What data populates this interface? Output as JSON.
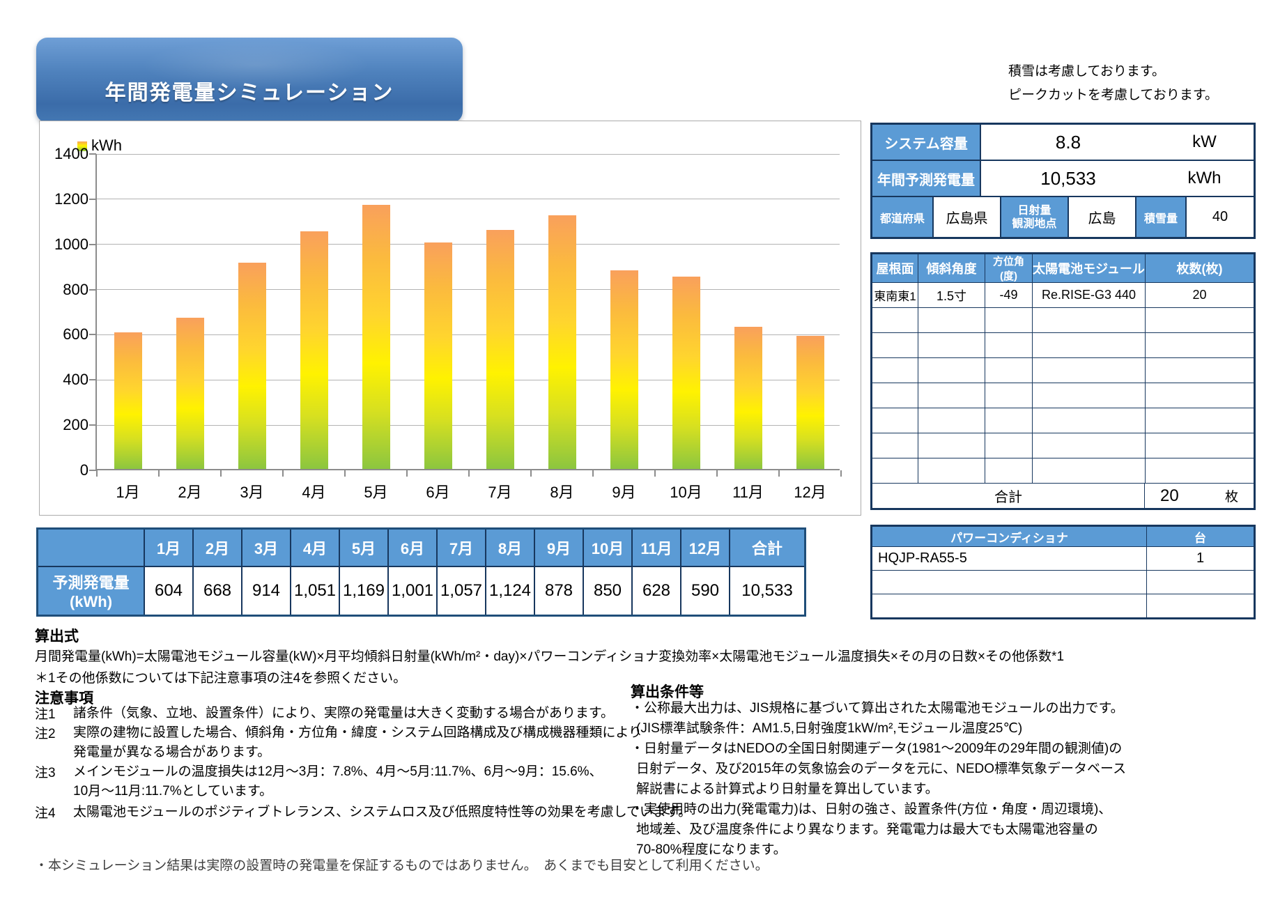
{
  "colors": {
    "header_blue": "#5b9bd5",
    "border_navy": "#17375e",
    "bar_top": "#f9a05c",
    "bar_mid": "#fff200",
    "bar_bottom": "#8cc63f",
    "banner_blue": "#4f82bd"
  },
  "title_banner": {
    "text": "年間発電量シミュレーション"
  },
  "top_notes": {
    "line1": "積雪は考慮しております。",
    "line2": "ピークカットを考慮しております。"
  },
  "chart_data": {
    "type": "bar",
    "legend": "kWh",
    "categories": [
      "1月",
      "2月",
      "3月",
      "4月",
      "5月",
      "6月",
      "7月",
      "8月",
      "9月",
      "10月",
      "11月",
      "12月"
    ],
    "values": [
      604,
      668,
      914,
      1051,
      1169,
      1001,
      1057,
      1124,
      878,
      850,
      628,
      590
    ],
    "ylim": [
      0,
      1400
    ],
    "yticks": [
      0,
      200,
      400,
      600,
      800,
      1000,
      1200,
      1400
    ],
    "grid": "horizontal",
    "legend_position": "top-left"
  },
  "system_table": {
    "capacity_label": "システム容量",
    "capacity_value": "8.8",
    "capacity_unit": "kW",
    "annual_label": "年間予測発電量",
    "annual_value": "10,533",
    "annual_unit": "kWh",
    "pref_label": "都道府県",
    "pref_value": "広島県",
    "irradiance_label_1": "日射量",
    "irradiance_label_2": "観測地点",
    "irradiance_value": "広島",
    "snow_label": "積雪量",
    "snow_value": "40"
  },
  "roof_table": {
    "headers": [
      "屋根面",
      "傾斜角度",
      "方位角(度)",
      "太陽電池モジュール",
      "枚数(枚)"
    ],
    "row": [
      "東南東1",
      "1.5寸",
      "-49",
      "Re.RISE-G3 440",
      "20"
    ],
    "empty_row_count": 7,
    "total_label": "合計",
    "total_value": "20",
    "total_unit": "枚"
  },
  "pcs_table": {
    "name_header": "パワーコンディショナ",
    "count_header": "台",
    "rows": [
      [
        "HQJP-RA55-5",
        "1"
      ],
      [
        "",
        ""
      ],
      [
        "",
        ""
      ]
    ]
  },
  "monthly_table": {
    "row_label": "予測発電量(kWh)",
    "months": [
      "1月",
      "2月",
      "3月",
      "4月",
      "5月",
      "6月",
      "7月",
      "8月",
      "9月",
      "10月",
      "11月",
      "12月"
    ],
    "total_label": "合計",
    "values": [
      "604",
      "668",
      "914",
      "1,051",
      "1,169",
      "1,001",
      "1,057",
      "1,124",
      "878",
      "850",
      "628",
      "590"
    ],
    "total_value": "10,533"
  },
  "formula_section": {
    "heading": "算出式",
    "formula": "月間発電量(kWh)=太陽電池モジュール容量(kW)×月平均傾斜日射量(kWh/m²・day)×パワーコンディショナ変換効率×太陽電池モジュール温度損失×その月の日数×その他係数*1",
    "note": "＊1その他係数については下記注意事項の注4を参照ください。"
  },
  "notes_section": {
    "heading": "注意事項",
    "items": [
      {
        "label": "注1",
        "lines": [
          "諸条件（気象、立地、設置条件）により、実際の発電量は大きく変動する場合があります。"
        ]
      },
      {
        "label": "注2",
        "lines": [
          "実際の建物に設置した場合、傾斜角・方位角・緯度・システム回路構成及び構成機器種類により",
          "発電量が異なる場合があります。"
        ]
      },
      {
        "label": "注3",
        "lines": [
          "メインモジュールの温度損失は12月～3月：7.8%、4月～5月:11.7%、6月～9月：15.6%、",
          "10月～11月:11.7%としています。"
        ]
      },
      {
        "label": "注4",
        "lines": [
          "太陽電池モジュールのポジティブトレランス、システムロス及び低照度特性等の効果を考慮しています。"
        ]
      }
    ]
  },
  "conditions_section": {
    "heading": "算出条件等",
    "lines": [
      {
        "text": "・公称最大出力は、JIS規格に基づいて算出された太陽電池モジュールの出力です。",
        "indent": false
      },
      {
        "text": "(JIS標準試験条件：AM1.5,日射強度1kW/m²,モジュール温度25℃)",
        "indent": true
      },
      {
        "text": "・日射量データはNEDOの全国日射関連データ(1981～2009年の29年間の観測値)の",
        "indent": false
      },
      {
        "text": "日射データ、及び2015年の気象協会のデータを元に、NEDO標準気象データベース",
        "indent": true
      },
      {
        "text": "解説書による計算式より日射量を算出しています。",
        "indent": true
      },
      {
        "text": "・実使用時の出力(発電電力)は、日射の強さ、設置条件(方位・角度・周辺環境)、",
        "indent": false
      },
      {
        "text": "地域差、及び温度条件により異なります。発電電力は最大でも太陽電池容量の",
        "indent": true
      },
      {
        "text": "70-80%程度になります。",
        "indent": true
      }
    ]
  },
  "footer_note": "・本シミュレーション結果は実際の設置時の発電量を保証するものではありません。　あくまでも目安として利用ください。"
}
